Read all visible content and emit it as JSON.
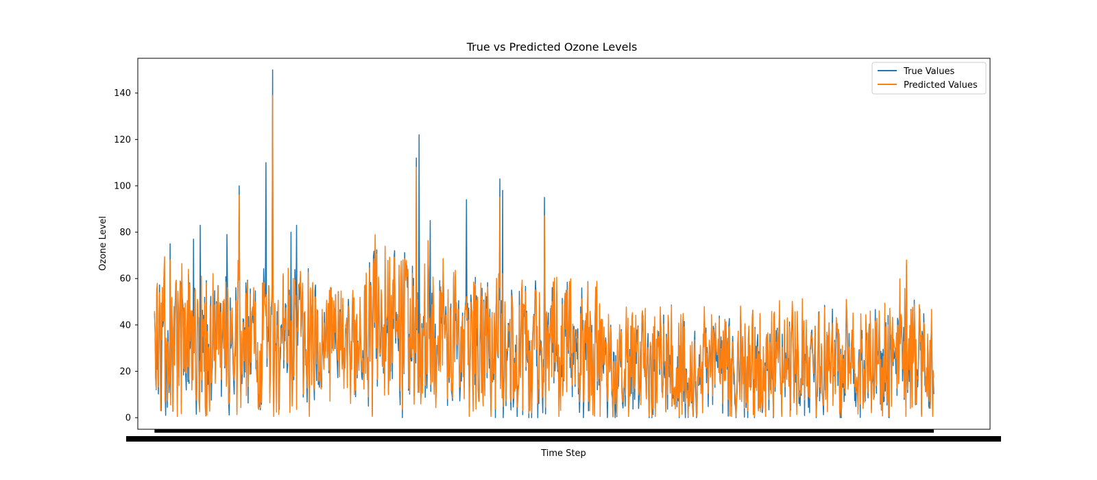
{
  "chart_data": {
    "type": "line",
    "title": "True vs Predicted Ozone Levels",
    "xlabel": "Time Step",
    "ylabel": "Ozone Level",
    "ylim": [
      -5,
      155
    ],
    "xlim": [
      -30,
      1500
    ],
    "yticks": [
      0,
      20,
      40,
      60,
      80,
      100,
      120,
      140
    ],
    "xtick_labels_note": "dense overlapping tick labels, illegible",
    "grid": false,
    "legend_position": "top-right",
    "n_points": 1400,
    "series": [
      {
        "name": "True Values",
        "color": "#1f77b4",
        "notable_values": [
          {
            "x": 0,
            "y": 45
          },
          {
            "x": 5,
            "y": 21
          },
          {
            "x": 12,
            "y": 3
          },
          {
            "x": 20,
            "y": 1
          },
          {
            "x": 28,
            "y": 75
          },
          {
            "x": 70,
            "y": 77
          },
          {
            "x": 82,
            "y": 83
          },
          {
            "x": 130,
            "y": 79
          },
          {
            "x": 152,
            "y": 100
          },
          {
            "x": 200,
            "y": 110
          },
          {
            "x": 212,
            "y": 150
          },
          {
            "x": 214,
            "y": 3
          },
          {
            "x": 245,
            "y": 80
          },
          {
            "x": 255,
            "y": 83
          },
          {
            "x": 470,
            "y": 112
          },
          {
            "x": 475,
            "y": 122
          },
          {
            "x": 495,
            "y": 85
          },
          {
            "x": 560,
            "y": 94
          },
          {
            "x": 620,
            "y": 103
          },
          {
            "x": 625,
            "y": 98
          },
          {
            "x": 700,
            "y": 95
          },
          {
            "x": 1350,
            "y": 66
          },
          {
            "x": 1390,
            "y": 5
          }
        ],
        "typical_range": [
          0,
          60
        ],
        "baseline_regime_after_x": 800,
        "baseline_regime_range": [
          0,
          50
        ]
      },
      {
        "name": "Predicted Values",
        "color": "#ff7f0e",
        "notable_values": [
          {
            "x": 0,
            "y": 46
          },
          {
            "x": 5,
            "y": 58
          },
          {
            "x": 28,
            "y": 68
          },
          {
            "x": 152,
            "y": 96
          },
          {
            "x": 212,
            "y": 139
          },
          {
            "x": 470,
            "y": 108
          },
          {
            "x": 620,
            "y": 95
          },
          {
            "x": 700,
            "y": 87
          },
          {
            "x": 1350,
            "y": 68
          },
          {
            "x": 1390,
            "y": 15
          }
        ],
        "typical_range": [
          5,
          58
        ],
        "baseline_regime_after_x": 800,
        "baseline_regime_range": [
          1,
          50
        ]
      }
    ]
  }
}
